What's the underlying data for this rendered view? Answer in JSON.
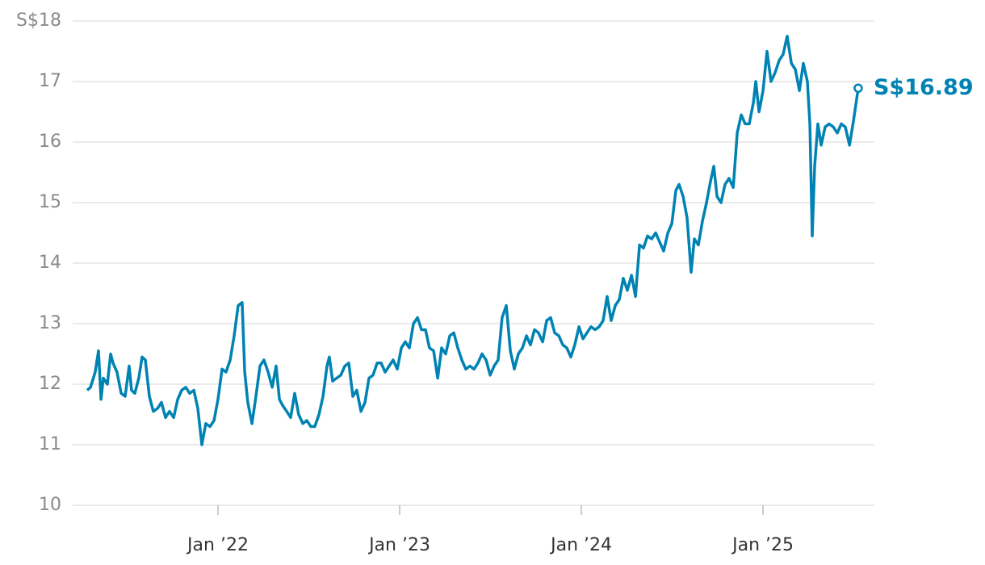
{
  "chart_data": {
    "type": "line",
    "x": [
      2021.28,
      2021.298,
      2021.324,
      2021.342,
      2021.356,
      2021.369,
      2021.391,
      2021.409,
      2021.422,
      2021.444,
      2021.467,
      2021.489,
      2021.511,
      2021.524,
      2021.542,
      2021.564,
      2021.582,
      2021.6,
      2021.622,
      2021.644,
      2021.667,
      2021.689,
      2021.711,
      2021.733,
      2021.756,
      2021.778,
      2021.8,
      2021.822,
      2021.844,
      2021.867,
      2021.889,
      2021.911,
      2021.933,
      2021.956,
      2021.978,
      2022.0,
      2022.022,
      2022.044,
      2022.067,
      2022.089,
      2022.111,
      2022.133,
      2022.147,
      2022.164,
      2022.187,
      2022.209,
      2022.231,
      2022.253,
      2022.276,
      2022.298,
      2022.32,
      2022.338,
      2022.356,
      2022.378,
      2022.4,
      2022.422,
      2022.444,
      2022.467,
      2022.489,
      2022.511,
      2022.533,
      2022.556,
      2022.578,
      2022.6,
      2022.613,
      2022.631,
      2022.653,
      2022.676,
      2022.698,
      2022.72,
      2022.742,
      2022.764,
      2022.787,
      2022.809,
      2022.831,
      2022.853,
      2022.876,
      2022.898,
      2022.92,
      2022.942,
      2022.964,
      2022.987,
      2023.009,
      2023.031,
      2023.053,
      2023.076,
      2023.098,
      2023.12,
      2023.142,
      2023.164,
      2023.187,
      2023.209,
      2023.231,
      2023.253,
      2023.276,
      2023.298,
      2023.32,
      2023.342,
      2023.364,
      2023.387,
      2023.409,
      2023.431,
      2023.453,
      2023.476,
      2023.498,
      2023.52,
      2023.542,
      2023.564,
      2023.587,
      2023.609,
      2023.631,
      2023.653,
      2023.676,
      2023.698,
      2023.72,
      2023.742,
      2023.764,
      2023.787,
      2023.809,
      2023.831,
      2023.853,
      2023.876,
      2023.898,
      2023.92,
      2023.942,
      2023.964,
      2023.987,
      2024.009,
      2024.031,
      2024.053,
      2024.076,
      2024.098,
      2024.12,
      2024.142,
      2024.164,
      2024.187,
      2024.209,
      2024.231,
      2024.253,
      2024.276,
      2024.298,
      2024.32,
      2024.342,
      2024.364,
      2024.387,
      2024.409,
      2024.431,
      2024.453,
      2024.476,
      2024.498,
      2024.52,
      2024.538,
      2024.56,
      2024.582,
      2024.604,
      2024.622,
      2024.644,
      2024.667,
      2024.689,
      2024.711,
      2024.729,
      2024.747,
      2024.769,
      2024.791,
      2024.813,
      2024.836,
      2024.858,
      2024.88,
      2024.902,
      2024.924,
      2024.947,
      2024.96,
      2024.978,
      2025.0,
      2025.022,
      2025.044,
      2025.067,
      2025.089,
      2025.111,
      2025.133,
      2025.156,
      2025.178,
      2025.2,
      2025.222,
      2025.244,
      2025.258,
      2025.271,
      2025.284,
      2025.302,
      2025.32,
      2025.342,
      2025.364,
      2025.387,
      2025.409,
      2025.431,
      2025.453,
      2025.476,
      2025.498,
      2025.524
    ],
    "series": [
      {
        "color": "#0083b3",
        "values": [
          11.9,
          11.95,
          12.2,
          12.55,
          11.75,
          12.1,
          12.0,
          12.5,
          12.35,
          12.2,
          11.85,
          11.8,
          12.3,
          11.9,
          11.85,
          12.1,
          12.45,
          12.4,
          11.8,
          11.55,
          11.6,
          11.7,
          11.45,
          11.55,
          11.45,
          11.75,
          11.9,
          11.95,
          11.85,
          11.9,
          11.6,
          11.0,
          11.35,
          11.3,
          11.4,
          11.75,
          12.25,
          12.2,
          12.4,
          12.8,
          13.3,
          13.35,
          12.2,
          11.7,
          11.35,
          11.8,
          12.3,
          12.4,
          12.2,
          11.95,
          12.3,
          11.75,
          11.65,
          11.55,
          11.45,
          11.85,
          11.5,
          11.35,
          11.4,
          11.3,
          11.3,
          11.5,
          11.8,
          12.3,
          12.45,
          12.05,
          12.1,
          12.15,
          12.3,
          12.35,
          11.8,
          11.9,
          11.55,
          11.7,
          12.1,
          12.15,
          12.35,
          12.35,
          12.2,
          12.3,
          12.4,
          12.25,
          12.6,
          12.7,
          12.6,
          13.0,
          13.1,
          12.9,
          12.9,
          12.6,
          12.55,
          12.1,
          12.6,
          12.5,
          12.8,
          12.85,
          12.6,
          12.4,
          12.25,
          12.3,
          12.25,
          12.35,
          12.5,
          12.4,
          12.15,
          12.3,
          12.4,
          13.1,
          13.3,
          12.55,
          12.25,
          12.5,
          12.6,
          12.8,
          12.65,
          12.9,
          12.85,
          12.7,
          13.05,
          13.1,
          12.85,
          12.8,
          12.65,
          12.6,
          12.45,
          12.65,
          12.95,
          12.75,
          12.85,
          12.95,
          12.9,
          12.95,
          13.05,
          13.45,
          13.05,
          13.3,
          13.4,
          13.75,
          13.55,
          13.8,
          13.45,
          14.3,
          14.25,
          14.45,
          14.4,
          14.5,
          14.35,
          14.2,
          14.5,
          14.65,
          15.2,
          15.3,
          15.1,
          14.75,
          13.85,
          14.4,
          14.3,
          14.7,
          15.0,
          15.35,
          15.6,
          15.1,
          15.0,
          15.3,
          15.4,
          15.25,
          16.15,
          16.45,
          16.3,
          16.3,
          16.65,
          17.0,
          16.5,
          16.85,
          17.5,
          17.0,
          17.15,
          17.35,
          17.45,
          17.75,
          17.3,
          17.2,
          16.85,
          17.3,
          17.0,
          16.3,
          14.45,
          15.6,
          16.3,
          15.95,
          16.25,
          16.3,
          16.25,
          16.15,
          16.3,
          16.25,
          15.95,
          16.35,
          16.89
        ]
      }
    ],
    "last_label": "S$16.89",
    "xlim": [
      2021.2,
      2025.613
    ],
    "xticks": [
      {
        "value": 2022,
        "label": "Jan ’22"
      },
      {
        "value": 2023,
        "label": "Jan ’23"
      },
      {
        "value": 2024,
        "label": "Jan ’24"
      },
      {
        "value": 2025,
        "label": "Jan ’25"
      }
    ],
    "ylim": [
      10,
      18
    ],
    "yticks": [
      10,
      11,
      12,
      13,
      14,
      15,
      16,
      17,
      {
        "value": 18,
        "label": "S$18"
      }
    ],
    "grid": true
  }
}
